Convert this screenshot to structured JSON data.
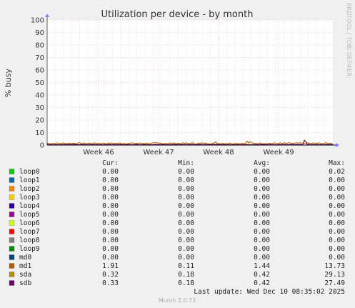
{
  "chart_data": {
    "type": "line",
    "title": "Utilization per device - by month",
    "ylabel": "% busy",
    "xlabel": "",
    "ylim": [
      0,
      100
    ],
    "yticks": [
      0,
      10,
      20,
      30,
      40,
      50,
      60,
      70,
      80,
      90,
      100
    ],
    "xticks": [
      "Week 46",
      "Week 47",
      "Week 48",
      "Week 49"
    ],
    "grid": true,
    "side_text": "RRDTOOL / TOBI OETIKER",
    "legend_headers": [
      "Cur:",
      "Min:",
      "Avg:",
      "Max:"
    ],
    "series": [
      {
        "name": "loop0",
        "color": "#00cc00",
        "cur": "0.00",
        "min": "0.00",
        "avg": "0.00",
        "max": "0.02"
      },
      {
        "name": "loop1",
        "color": "#0066b3",
        "cur": "0.00",
        "min": "0.00",
        "avg": "0.00",
        "max": "0.00"
      },
      {
        "name": "loop2",
        "color": "#ff8000",
        "cur": "0.00",
        "min": "0.00",
        "avg": "0.00",
        "max": "0.00"
      },
      {
        "name": "loop3",
        "color": "#ffcc00",
        "cur": "0.00",
        "min": "0.00",
        "avg": "0.00",
        "max": "0.00"
      },
      {
        "name": "loop4",
        "color": "#330099",
        "cur": "0.00",
        "min": "0.00",
        "avg": "0.00",
        "max": "0.00"
      },
      {
        "name": "loop5",
        "color": "#990099",
        "cur": "0.00",
        "min": "0.00",
        "avg": "0.00",
        "max": "0.00"
      },
      {
        "name": "loop6",
        "color": "#ccff00",
        "cur": "0.00",
        "min": "0.00",
        "avg": "0.00",
        "max": "0.00"
      },
      {
        "name": "loop7",
        "color": "#ff0000",
        "cur": "0.00",
        "min": "0.00",
        "avg": "0.00",
        "max": "0.00"
      },
      {
        "name": "loop8",
        "color": "#808080",
        "cur": "0.00",
        "min": "0.00",
        "avg": "0.00",
        "max": "0.00"
      },
      {
        "name": "loop9",
        "color": "#008f00",
        "cur": "0.00",
        "min": "0.00",
        "avg": "0.00",
        "max": "0.00"
      },
      {
        "name": "md0",
        "color": "#00487d",
        "cur": "0.00",
        "min": "0.00",
        "avg": "0.00",
        "max": "0.00"
      },
      {
        "name": "md1",
        "color": "#b35a00",
        "cur": "1.91",
        "min": "0.11",
        "avg": "1.44",
        "max": "13.73"
      },
      {
        "name": "sda",
        "color": "#b38f00",
        "cur": "0.32",
        "min": "0.18",
        "avg": "0.42",
        "max": "29.13"
      },
      {
        "name": "sdb",
        "color": "#6b006b",
        "cur": "0.33",
        "min": "0.18",
        "avg": "0.42",
        "max": "27.49"
      }
    ],
    "plotted_series": [
      {
        "name": "md1",
        "base": 1.4,
        "noise": 0.5,
        "spikes": [
          [
            0.59,
            2.6
          ],
          [
            0.7,
            3.2
          ],
          [
            0.71,
            2.8
          ]
        ]
      },
      {
        "name": "sda",
        "base": 0.45,
        "noise": 0.2,
        "spikes": [
          [
            0.9,
            4.2
          ],
          [
            0.905,
            3.0
          ]
        ]
      },
      {
        "name": "sdb",
        "base": 0.45,
        "noise": 0.2,
        "spikes": [
          [
            0.9,
            3.6
          ],
          [
            0.905,
            2.6
          ]
        ]
      }
    ],
    "last_update": "Last update: Wed Dec 10 08:35:02 2025",
    "footer": "Munin 2.0.73"
  }
}
